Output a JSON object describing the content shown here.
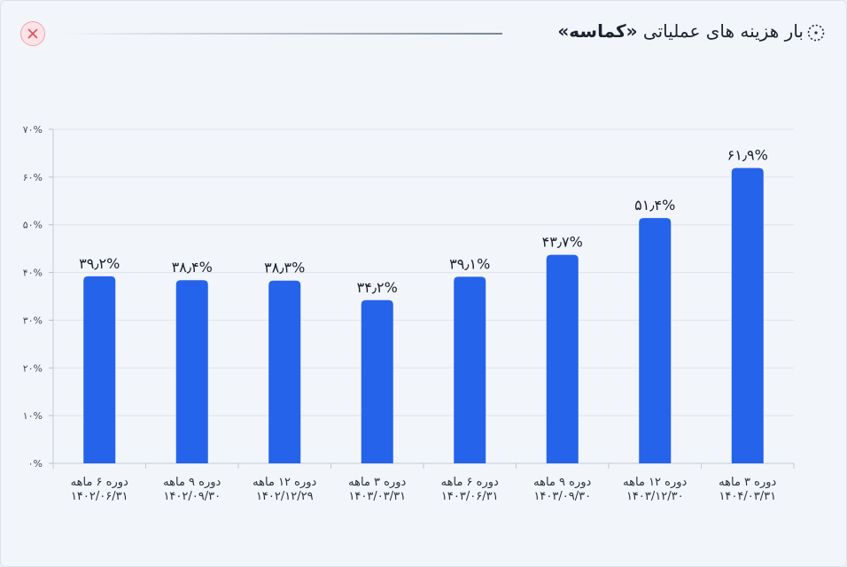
{
  "header": {
    "title_prefix": "بار هزینه های عملیاتی",
    "title_company": "«کماسه»",
    "settings_icon": "dotted-circle-icon",
    "close_icon": "close-x-icon",
    "close_color": "#e5485d"
  },
  "chart_data": {
    "type": "bar",
    "categories": [
      [
        "دوره ۶ ماهه",
        "۱۴۰۲/۰۶/۳۱"
      ],
      [
        "دوره ۹ ماهه",
        "۱۴۰۲/۰۹/۳۰"
      ],
      [
        "دوره ۱۲ ماهه",
        "۱۴۰۲/۱۲/۲۹"
      ],
      [
        "دوره ۳ ماهه",
        "۱۴۰۳/۰۳/۳۱"
      ],
      [
        "دوره ۶ ماهه",
        "۱۴۰۳/۰۶/۳۱"
      ],
      [
        "دوره ۹ ماهه",
        "۱۴۰۳/۰۹/۳۰"
      ],
      [
        "دوره ۱۲ ماهه",
        "۱۴۰۳/۱۲/۳۰"
      ],
      [
        "دوره ۳ ماهه",
        "۱۴۰۴/۰۳/۳۱"
      ]
    ],
    "values": [
      39.2,
      38.4,
      38.3,
      34.2,
      39.1,
      43.7,
      51.4,
      61.9
    ],
    "value_labels": [
      "۳۹٫۲%",
      "۳۸٫۴%",
      "۳۸٫۳%",
      "۳۴٫۲%",
      "۳۹٫۱%",
      "۴۳٫۷%",
      "۵۱٫۴%",
      "۶۱٫۹%"
    ],
    "ylim": [
      0,
      70
    ],
    "yticks": [
      0,
      10,
      20,
      30,
      40,
      50,
      60,
      70
    ],
    "ytick_labels": [
      "۰%",
      "۱۰%",
      "۲۰%",
      "۳۰%",
      "۴۰%",
      "۵۰%",
      "۶۰%",
      "۷۰%"
    ],
    "bar_color": "#2563eb",
    "grid": true
  }
}
